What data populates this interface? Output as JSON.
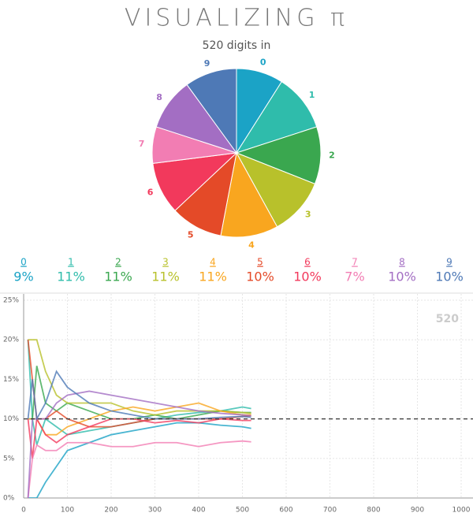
{
  "title": "VISUALIZING π",
  "subtitle": "520 digits in",
  "chart_data": [
    {
      "type": "pie",
      "categories": [
        "0",
        "1",
        "2",
        "3",
        "4",
        "5",
        "6",
        "7",
        "8",
        "9"
      ],
      "values": [
        9,
        11,
        11,
        11,
        11,
        10,
        10,
        7,
        10,
        10
      ],
      "value_labels": [
        "9%",
        "11%",
        "11%",
        "11%",
        "11%",
        "10%",
        "10%",
        "7%",
        "10%",
        "10%"
      ],
      "colors": [
        "#1ba3c6",
        "#2fbcab",
        "#3aa74f",
        "#b8c12b",
        "#f9a61f",
        "#e44a28",
        "#f2395c",
        "#f27db3",
        "#a36ec3",
        "#4e79b6"
      ]
    },
    {
      "type": "line",
      "annotation": "520",
      "x": [
        10,
        20,
        30,
        50,
        75,
        100,
        150,
        200,
        250,
        300,
        350,
        400,
        450,
        500,
        520
      ],
      "xlim": [
        0,
        1000
      ],
      "xticks": [
        0,
        100,
        200,
        300,
        400,
        500,
        600,
        700,
        800,
        900,
        1000
      ],
      "ylim": [
        0,
        25
      ],
      "yticks": [
        {
          "value": 0,
          "label": "0%"
        },
        {
          "value": 5,
          "label": "5%"
        },
        {
          "value": 10,
          "label": "10%"
        },
        {
          "value": 15,
          "label": "15%"
        },
        {
          "value": 20,
          "label": "20%"
        },
        {
          "value": 25,
          "label": "25%"
        }
      ],
      "reference_line": 10,
      "grid": true,
      "series": [
        {
          "name": "0",
          "color": "#1ba3c6",
          "values": [
            0,
            0,
            0,
            2,
            4,
            6,
            7,
            8,
            8.5,
            9,
            9.5,
            9.5,
            9.2,
            9,
            8.8
          ]
        },
        {
          "name": "1",
          "color": "#2fbcab",
          "values": [
            20,
            10,
            6.7,
            10,
            9,
            8,
            8.5,
            9,
            9.5,
            10,
            10.5,
            10.8,
            11,
            11.5,
            11.3
          ]
        },
        {
          "name": "2",
          "color": "#3aa74f",
          "values": [
            10,
            10,
            16.7,
            12,
            11,
            12,
            11,
            10,
            10,
            10.5,
            10,
            10.5,
            11,
            10.8,
            10.8
          ]
        },
        {
          "name": "3",
          "color": "#b8c12b",
          "values": [
            20,
            20,
            20,
            16,
            13,
            12,
            12,
            12,
            11,
            10.5,
            11,
            11,
            11,
            10.8,
            10.7
          ]
        },
        {
          "name": "4",
          "color": "#f9a61f",
          "values": [
            10,
            10,
            10,
            8,
            8,
            9,
            10,
            11,
            11.5,
            11,
            11.5,
            12,
            11,
            10.5,
            10.5
          ]
        },
        {
          "name": "5",
          "color": "#e44a28",
          "values": [
            20,
            15,
            10,
            10,
            11,
            10,
            9,
            9,
            9.5,
            10,
            10,
            10,
            10,
            10.3,
            10.4
          ]
        },
        {
          "name": "6",
          "color": "#f2395c",
          "values": [
            10,
            5,
            10,
            8,
            7,
            8,
            9,
            10,
            10,
            9.5,
            9.8,
            9.5,
            10,
            9.8,
            9.8
          ]
        },
        {
          "name": "7",
          "color": "#f27db3",
          "values": [
            0,
            5,
            6.7,
            6,
            6,
            7,
            7,
            6.5,
            6.5,
            7,
            7,
            6.5,
            7,
            7.2,
            7.1
          ]
        },
        {
          "name": "8",
          "color": "#a36ec3",
          "values": [
            0,
            10,
            10,
            10,
            12,
            13,
            13.5,
            13,
            12.5,
            12,
            11.5,
            11,
            10.7,
            10.5,
            10.4
          ]
        },
        {
          "name": "9",
          "color": "#4e79b6",
          "values": [
            10,
            15,
            10,
            12,
            16,
            14,
            12,
            11,
            10.5,
            10,
            10,
            10,
            10.2,
            10.3,
            10.2
          ]
        }
      ]
    }
  ]
}
